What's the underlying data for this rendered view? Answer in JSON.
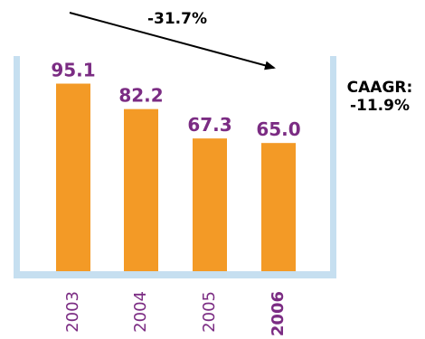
{
  "chart_data": {
    "type": "bar",
    "categories": [
      "2003",
      "2004",
      "2005",
      "2006"
    ],
    "values": [
      95.1,
      82.2,
      67.3,
      65.0
    ],
    "value_labels": [
      "95.1",
      "82.2",
      "67.3",
      "65.0"
    ],
    "highlight_category": "2006",
    "ylim": [
      0,
      110
    ],
    "grid": false,
    "title": "",
    "xlabel": "",
    "ylabel": "",
    "annotations": {
      "change": "-31.7%",
      "caagr_label": "CAAGR:",
      "caagr_value": "-11.9%"
    },
    "colors": {
      "bar": "#F39A26",
      "value_label": "#7B2C83",
      "tick_label": "#7B2C83",
      "frame": "#C6DFF0",
      "arrow": "#000000"
    }
  }
}
